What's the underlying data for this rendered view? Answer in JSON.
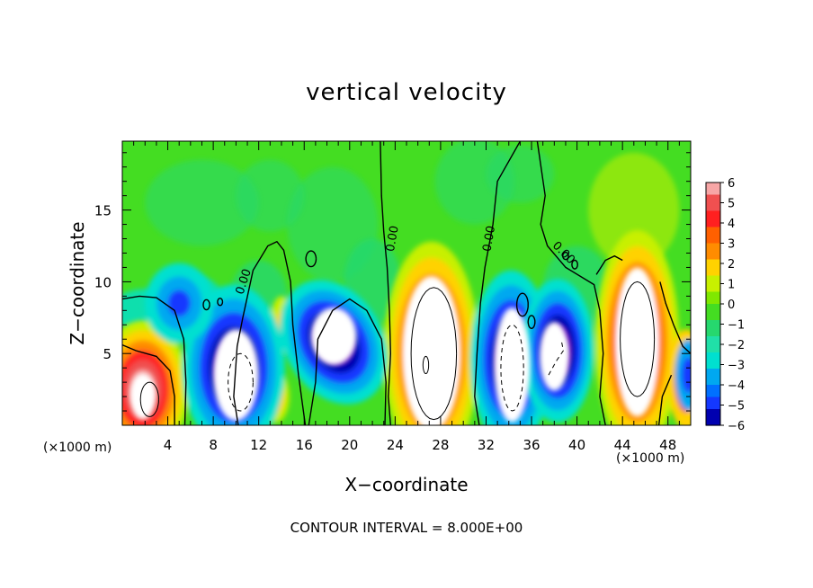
{
  "chart_data": {
    "type": "heatmap",
    "title": "vertical velocity",
    "xlabel": "X−coordinate",
    "ylabel": "Z−coordinate",
    "x_unit_left": "(×1000 m)",
    "x_unit_right": "(×1000 m)",
    "footer": "CONTOUR INTERVAL = 8.000E+00",
    "xlim": [
      0,
      50
    ],
    "ylim": [
      0,
      19.8
    ],
    "x_ticks": [
      4,
      8,
      12,
      16,
      20,
      24,
      28,
      32,
      36,
      40,
      44,
      48
    ],
    "x_tick_labels": [
      "4",
      "8",
      "12",
      "16",
      "20",
      "24",
      "28",
      "32",
      "36",
      "40",
      "44",
      "48"
    ],
    "y_ticks": [
      5,
      10,
      15
    ],
    "y_tick_labels": [
      "5",
      "10",
      "15"
    ],
    "colorbar_ticks": [
      6,
      5,
      4,
      3,
      2,
      1,
      0,
      -1,
      -2,
      -3,
      -4,
      -5,
      -6
    ],
    "colorbar_tick_labels": [
      "6",
      "5",
      "4",
      "3",
      "2",
      "1",
      "0",
      "−1",
      "−2",
      "−3",
      "−4",
      "−5",
      "−6"
    ],
    "colorbar_range": [
      -6,
      6
    ],
    "contour_labels": [
      {
        "text": "0.00",
        "x": 10.7,
        "y": 10.0,
        "angle": -72
      },
      {
        "text": "0.00",
        "x": 23.8,
        "y": 13.0,
        "angle": -80
      },
      {
        "text": "0.00",
        "x": 32.3,
        "y": 13.0,
        "angle": -80
      },
      {
        "text": "0.00",
        "x": 38.8,
        "y": 12.0,
        "angle": 45
      }
    ],
    "features": [
      {
        "label": "updraft",
        "x": 2.5,
        "z": 1.8,
        "peak": 8
      },
      {
        "label": "downdraft",
        "x": 10.0,
        "z": 3.8,
        "peak": -9
      },
      {
        "label": "downdraft",
        "x": 18.5,
        "z": 6.0,
        "peak": -9
      },
      {
        "label": "updraft",
        "x": 27.2,
        "z": 5.0,
        "peak": 10
      },
      {
        "label": "downdraft",
        "x": 34.3,
        "z": 4.2,
        "peak": -9
      },
      {
        "label": "downdraft",
        "x": 38.0,
        "z": 4.8,
        "peak": -8
      },
      {
        "label": "updraft",
        "x": 45.3,
        "z": 5.8,
        "peak": 10
      },
      {
        "label": "downdraft",
        "x": 49.7,
        "z": 3.5,
        "peak": -7
      }
    ],
    "colors": {
      "pos6": "#f7a6a6",
      "pos5": "#f05050",
      "pos4": "#ff2020",
      "pos3": "#ff8c00",
      "pos2": "#ffd200",
      "pos1": "#c8f000",
      "zero": "#44dd22",
      "neg1": "#26d86e",
      "neg2": "#00e0d0",
      "neg3": "#00a8f0",
      "neg4": "#1438ff",
      "neg5": "#0000b0",
      "neg6": "#7000b8"
    }
  }
}
